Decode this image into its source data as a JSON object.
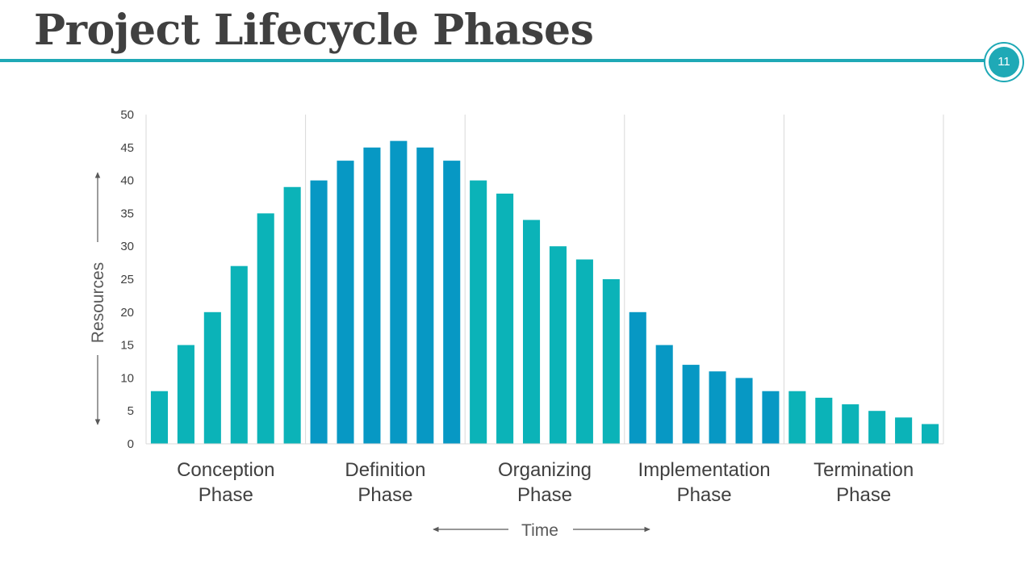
{
  "page": {
    "title": "Project Lifecycle Phases",
    "page_number": "11",
    "accent_color": "#1fa9b6"
  },
  "chart_data": {
    "type": "bar",
    "title": "",
    "xlabel": "Time",
    "ylabel": "Resources",
    "ylim": [
      0,
      50
    ],
    "yticks": [
      0,
      5,
      10,
      15,
      20,
      25,
      30,
      35,
      40,
      45,
      50
    ],
    "grid": "vertical lines between phases",
    "phases": [
      {
        "label_line1": "Conception",
        "label_line2": "Phase",
        "color": "#0bb3b8",
        "values": [
          8,
          15,
          20,
          27,
          35,
          39
        ]
      },
      {
        "label_line1": "Definition",
        "label_line2": "Phase",
        "color": "#0798c4",
        "values": [
          40,
          43,
          45,
          46,
          45,
          43
        ]
      },
      {
        "label_line1": "Organizing",
        "label_line2": "Phase",
        "color": "#0bb3b8",
        "values": [
          40,
          38,
          34,
          30,
          28,
          25
        ]
      },
      {
        "label_line1": "Implementation",
        "label_line2": "Phase",
        "color": "#0798c4",
        "values": [
          20,
          15,
          12,
          11,
          10,
          8
        ]
      },
      {
        "label_line1": "Termination",
        "label_line2": "Phase",
        "color": "#0bb3b8",
        "values": [
          8,
          7,
          6,
          5,
          4,
          3
        ]
      }
    ]
  }
}
